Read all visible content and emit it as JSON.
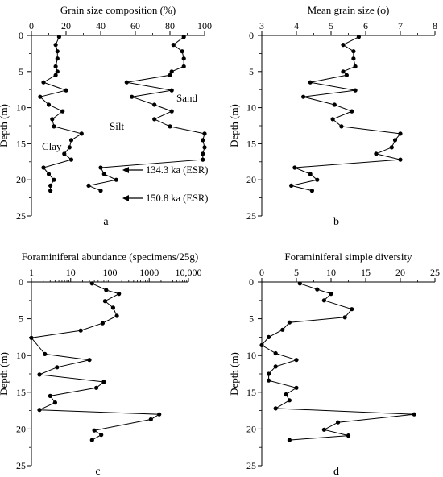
{
  "figure": {
    "background": "#ffffff",
    "ink": "#000000"
  },
  "chart_data": [
    {
      "id": "a",
      "type": "line",
      "panel_label": "a",
      "title": "Grain size composition (%)",
      "xlabel": "",
      "ylabel": "Depth (m)",
      "xlim": [
        0,
        100
      ],
      "ylim": [
        0,
        25
      ],
      "y_inverted": true,
      "x_scale": "linear",
      "x_ticks": [
        0,
        20,
        40,
        60,
        80,
        100
      ],
      "x_tick_labels": [
        "0",
        "20",
        "40",
        "60",
        "80",
        "100"
      ],
      "y_ticks": [
        0,
        5,
        10,
        15,
        20,
        25
      ],
      "y_tick_labels": [
        "0",
        "5",
        "10",
        "15",
        "20",
        "25"
      ],
      "grid": false,
      "legend": null,
      "series": [
        {
          "values_x": [
            16,
            14,
            15,
            15,
            14,
            15,
            14,
            7,
            20,
            5,
            10,
            18,
            12,
            13,
            29,
            23,
            22,
            19,
            23,
            7,
            10,
            13,
            11,
            11
          ],
          "values_y": [
            0.2,
            1.3,
            2.2,
            3.2,
            4.3,
            5.0,
            5.5,
            6.5,
            7.6,
            8.5,
            9.6,
            10.5,
            11.6,
            12.6,
            13.6,
            14.5,
            15.5,
            16.4,
            17.2,
            18.3,
            19.2,
            20.0,
            20.8,
            21.5
          ]
        },
        {
          "values_x": [
            88,
            82,
            87,
            88,
            88,
            81,
            80,
            55,
            81,
            58,
            71,
            81,
            71,
            80,
            100,
            99,
            100,
            99,
            99,
            40,
            42,
            49,
            33,
            40
          ],
          "values_y": [
            0.2,
            1.3,
            2.2,
            3.2,
            4.3,
            5.0,
            5.5,
            6.5,
            7.6,
            8.5,
            9.6,
            10.5,
            11.6,
            12.6,
            13.6,
            14.5,
            15.5,
            16.4,
            17.2,
            18.3,
            19.2,
            20.0,
            20.8,
            21.5
          ]
        }
      ],
      "annotations": [
        "Sand",
        "Silt",
        "Clay",
        "134.3 ka (ESR)",
        "150.8 ka (ESR)"
      ]
    },
    {
      "id": "b",
      "type": "line",
      "panel_label": "b",
      "title": "Mean grain size (ϕ)",
      "xlabel": "",
      "ylabel": "Depth (m)",
      "xlim": [
        3,
        8
      ],
      "ylim": [
        0,
        25
      ],
      "y_inverted": true,
      "x_scale": "linear",
      "x_ticks": [
        3,
        4,
        5,
        6,
        7,
        8
      ],
      "x_tick_labels": [
        "3",
        "4",
        "5",
        "6",
        "7",
        "8"
      ],
      "y_ticks": [
        0,
        5,
        10,
        15,
        20,
        25
      ],
      "y_tick_labels": [
        "0",
        "5",
        "10",
        "15",
        "20",
        "25"
      ],
      "grid": false,
      "legend": null,
      "series": [
        {
          "values_x": [
            5.8,
            5.35,
            5.65,
            5.65,
            5.7,
            5.35,
            5.45,
            4.4,
            5.7,
            4.2,
            5.1,
            5.6,
            5.05,
            5.3,
            7.0,
            6.85,
            6.75,
            6.3,
            7.0,
            3.95,
            4.4,
            4.6,
            3.85,
            4.45
          ],
          "values_y": [
            0.2,
            1.3,
            2.2,
            3.2,
            4.3,
            5.0,
            5.5,
            6.5,
            7.6,
            8.5,
            9.6,
            10.5,
            11.6,
            12.6,
            13.6,
            14.5,
            15.5,
            16.4,
            17.2,
            18.3,
            19.2,
            20.0,
            20.8,
            21.5
          ]
        }
      ]
    },
    {
      "id": "c",
      "type": "line",
      "panel_label": "c",
      "title": "Foraminiferal abundance (specimens/25g)",
      "xlabel": "",
      "ylabel": "Depth (m)",
      "xlim": [
        1,
        10000
      ],
      "ylim": [
        0,
        25
      ],
      "y_inverted": true,
      "x_scale": "log",
      "x_ticks": [
        1,
        10,
        100,
        1000,
        10000
      ],
      "x_tick_labels": [
        "1",
        "10",
        "100",
        "1000",
        "10,000"
      ],
      "y_ticks": [
        0,
        5,
        10,
        15,
        20,
        25
      ],
      "y_tick_labels": [
        "0",
        "5",
        "10",
        "15",
        "20",
        "25"
      ],
      "grid": false,
      "legend": null,
      "series": [
        {
          "values_x": [
            35,
            80,
            170,
            75,
            120,
            150,
            65,
            18,
            1,
            2.2,
            30,
            4.5,
            1.6,
            70,
            45,
            3,
            4,
            1.6,
            1800,
            1100,
            40,
            60,
            35
          ],
          "values_y": [
            0.2,
            1.1,
            1.6,
            2.6,
            3.5,
            4.6,
            5.6,
            6.6,
            7.6,
            9.8,
            10.6,
            11.6,
            12.6,
            13.6,
            14.4,
            15.5,
            16.4,
            17.4,
            18.0,
            18.7,
            20.2,
            20.8,
            21.5
          ]
        }
      ]
    },
    {
      "id": "d",
      "type": "line",
      "panel_label": "d",
      "title": "Foraminiferal simple diversity",
      "xlabel": "",
      "ylabel": "Depth (m)",
      "xlim": [
        0,
        25
      ],
      "ylim": [
        0,
        25
      ],
      "y_inverted": true,
      "x_scale": "linear",
      "x_ticks": [
        0,
        5,
        10,
        15,
        20,
        25
      ],
      "x_tick_labels": [
        "0",
        "5",
        "10",
        "15",
        "20",
        "25"
      ],
      "y_ticks": [
        0,
        5,
        10,
        15,
        20,
        25
      ],
      "y_tick_labels": [
        "0",
        "5",
        "10",
        "15",
        "20",
        "25"
      ],
      "grid": false,
      "legend": null,
      "series": [
        {
          "values_x": [
            5.5,
            8,
            10,
            9,
            13,
            12,
            4,
            3,
            1,
            0,
            2,
            5,
            2,
            1,
            1,
            5,
            3.5,
            4,
            2,
            22,
            11,
            9,
            12.5,
            4
          ],
          "values_y": [
            0.2,
            1.0,
            1.6,
            2.5,
            3.7,
            4.8,
            5.5,
            6.5,
            7.5,
            8.6,
            9.7,
            10.6,
            11.5,
            12.5,
            13.4,
            14.4,
            15.3,
            16.1,
            17.2,
            18.0,
            19.1,
            20.1,
            20.9,
            21.5
          ]
        }
      ]
    }
  ],
  "panel_a_labels": {
    "sand": "Sand",
    "silt": "Silt",
    "clay": "Clay",
    "esr1": "134.3 ka (ESR)",
    "esr2": "150.8 ka (ESR)"
  }
}
